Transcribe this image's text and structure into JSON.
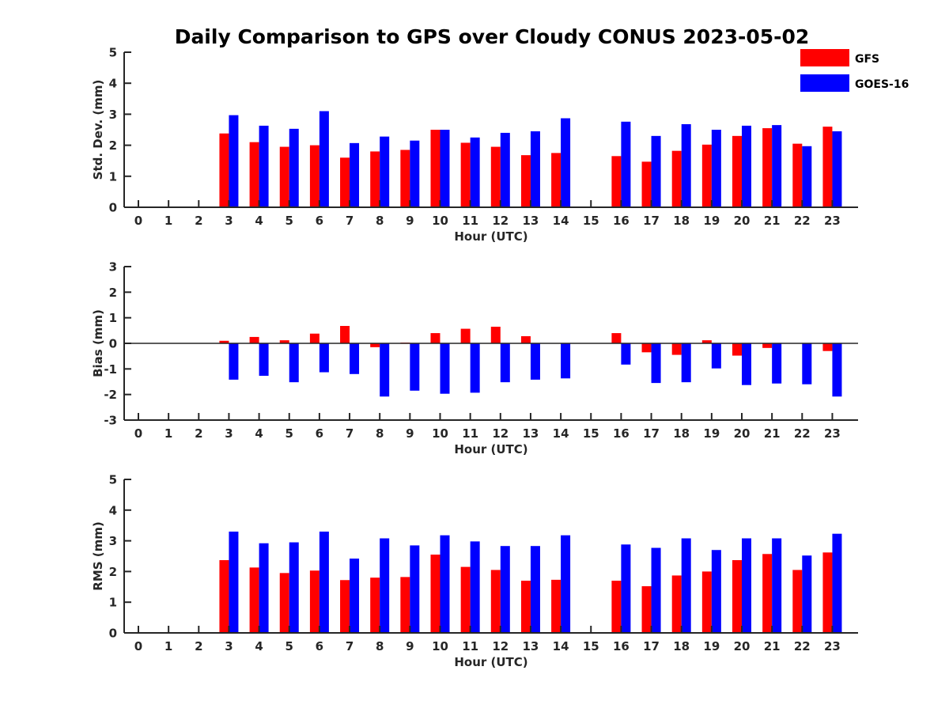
{
  "chart_data": {
    "type": "bar",
    "title": "Daily Comparison to GPS over Cloudy CONUS 2023-05-02",
    "legend": {
      "placement": "top-right",
      "entries": [
        {
          "label": "GFS",
          "color": "#ff0000"
        },
        {
          "label": "GOES-16",
          "color": "#0000ff"
        }
      ]
    },
    "categories": [
      "0",
      "1",
      "2",
      "3",
      "4",
      "5",
      "6",
      "7",
      "8",
      "9",
      "10",
      "11",
      "12",
      "13",
      "14",
      "15",
      "16",
      "17",
      "18",
      "19",
      "20",
      "21",
      "22",
      "23"
    ],
    "panels": [
      {
        "ylabel": "Std. Dev. (mm)",
        "xlabel": "Hour (UTC)",
        "ylim": [
          0,
          5
        ],
        "yticks": [
          "0",
          "1",
          "2",
          "3",
          "4",
          "5"
        ],
        "series": [
          {
            "name": "GFS",
            "color": "#ff0000",
            "values": [
              null,
              null,
              null,
              2.38,
              2.1,
              1.95,
              2.0,
              1.6,
              1.8,
              1.85,
              2.5,
              2.08,
              1.95,
              1.68,
              1.75,
              null,
              1.65,
              1.47,
              1.82,
              2.02,
              2.3,
              2.55,
              2.05,
              2.6
            ]
          },
          {
            "name": "GOES-16",
            "color": "#0000ff",
            "values": [
              null,
              null,
              null,
              2.97,
              2.63,
              2.53,
              3.1,
              2.07,
              2.28,
              2.15,
              2.5,
              2.25,
              2.4,
              2.45,
              2.87,
              null,
              2.76,
              2.3,
              2.68,
              2.5,
              2.63,
              2.65,
              1.97,
              2.45
            ]
          }
        ]
      },
      {
        "ylabel": "Bias (mm)",
        "xlabel": "Hour (UTC)",
        "ylim": [
          -3,
          3
        ],
        "yticks": [
          "-3",
          "-2",
          "-1",
          "0",
          "1",
          "2",
          "3"
        ],
        "series": [
          {
            "name": "GFS",
            "color": "#ff0000",
            "values": [
              null,
              null,
              null,
              0.1,
              0.25,
              0.12,
              0.38,
              0.68,
              -0.15,
              0.03,
              0.4,
              0.57,
              0.65,
              0.28,
              0.0,
              null,
              0.4,
              -0.35,
              -0.45,
              0.12,
              -0.48,
              -0.18,
              0.0,
              -0.3
            ]
          },
          {
            "name": "GOES-16",
            "color": "#0000ff",
            "values": [
              null,
              null,
              null,
              -1.42,
              -1.27,
              -1.52,
              -1.13,
              -1.2,
              -2.08,
              -1.85,
              -1.97,
              -1.93,
              -1.52,
              -1.42,
              -1.37,
              null,
              -0.83,
              -1.55,
              -1.52,
              -0.98,
              -1.63,
              -1.57,
              -1.6,
              -2.08
            ]
          }
        ]
      },
      {
        "ylabel": "RMS (mm)",
        "xlabel": "Hour (UTC)",
        "ylim": [
          0,
          5
        ],
        "yticks": [
          "0",
          "1",
          "2",
          "3",
          "4",
          "5"
        ],
        "series": [
          {
            "name": "GFS",
            "color": "#ff0000",
            "values": [
              null,
              null,
              null,
              2.37,
              2.13,
              1.95,
              2.03,
              1.72,
              1.8,
              1.82,
              2.55,
              2.15,
              2.05,
              1.7,
              1.73,
              null,
              1.7,
              1.52,
              1.87,
              2.0,
              2.37,
              2.57,
              2.05,
              2.62
            ]
          },
          {
            "name": "GOES-16",
            "color": "#0000ff",
            "values": [
              null,
              null,
              null,
              3.3,
              2.92,
              2.95,
              3.3,
              2.42,
              3.08,
              2.85,
              3.18,
              2.98,
              2.83,
              2.83,
              3.18,
              null,
              2.88,
              2.77,
              3.08,
              2.7,
              3.08,
              3.08,
              2.52,
              3.23
            ]
          }
        ]
      }
    ]
  }
}
